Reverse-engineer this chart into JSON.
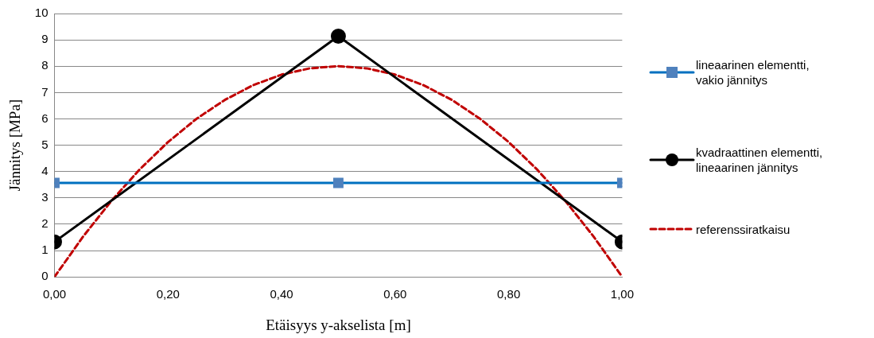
{
  "chart_data": {
    "type": "line",
    "xlabel": "Etäisyys y-akselista [m]",
    "ylabel": "Jännitys [MPa]",
    "xlim": [
      0,
      1
    ],
    "xticks": [
      {
        "value": 0,
        "label": "0,00"
      },
      {
        "value": 0.2,
        "label": "0,20"
      },
      {
        "value": 0.4,
        "label": "0,40"
      },
      {
        "value": 0.6,
        "label": "0,60"
      },
      {
        "value": 0.8,
        "label": "0,80"
      },
      {
        "value": 1,
        "label": "1,00"
      }
    ],
    "ylim": [
      0,
      10
    ],
    "yticks": [
      0,
      1,
      2,
      3,
      4,
      5,
      6,
      7,
      8,
      9,
      10
    ],
    "grid": "y",
    "legend": "right",
    "series": [
      {
        "name": "lineaarinen elementti, vakio jännitys",
        "color": "#0070c0",
        "marker": "square",
        "line_style": "solid",
        "x": [
          0,
          0.5,
          1
        ],
        "values": [
          3.57,
          3.57,
          3.57
        ]
      },
      {
        "name": "kvadraattinen elementti, lineaarinen jännitys",
        "color": "#000000",
        "marker": "circle",
        "line_style": "solid",
        "x": [
          0,
          0.5,
          1
        ],
        "values": [
          1.33,
          9.14,
          1.33
        ]
      },
      {
        "name": "referenssiratkaisu",
        "color": "#c00000",
        "marker": "none",
        "line_style": "dashed",
        "x": [
          0,
          0.05,
          0.1,
          0.15,
          0.2,
          0.25,
          0.3,
          0.35,
          0.4,
          0.45,
          0.5,
          0.55,
          0.6,
          0.65,
          0.7,
          0.75,
          0.8,
          0.85,
          0.9,
          0.95,
          1
        ],
        "values": [
          0,
          1.52,
          2.88,
          4.08,
          5.12,
          6,
          6.72,
          7.28,
          7.68,
          7.92,
          8,
          7.92,
          7.68,
          7.28,
          6.72,
          6,
          5.12,
          4.08,
          2.88,
          1.52,
          0
        ]
      }
    ]
  }
}
